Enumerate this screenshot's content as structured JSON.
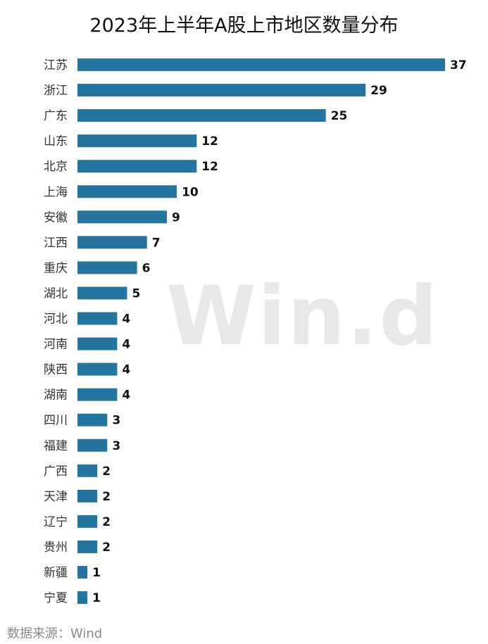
{
  "chart_data": {
    "type": "bar",
    "orientation": "horizontal",
    "title": "2023年上半年A股上市地区数量分布",
    "categories": [
      "江苏",
      "浙江",
      "广东",
      "山东",
      "北京",
      "上海",
      "安徽",
      "江西",
      "重庆",
      "湖北",
      "河北",
      "河南",
      "陕西",
      "湖南",
      "四川",
      "福建",
      "广西",
      "天津",
      "辽宁",
      "贵州",
      "新疆",
      "宁夏"
    ],
    "values": [
      37,
      29,
      25,
      12,
      12,
      10,
      9,
      7,
      6,
      5,
      4,
      4,
      4,
      4,
      3,
      3,
      2,
      2,
      2,
      2,
      1,
      1
    ],
    "xlabel": "",
    "ylabel": "",
    "xlim": [
      0,
      37
    ],
    "grid": false,
    "legend": "none",
    "data_labels": true,
    "bar_color": "#2476a0"
  },
  "watermark": "Win.d",
  "source": "数据来源：Wind"
}
